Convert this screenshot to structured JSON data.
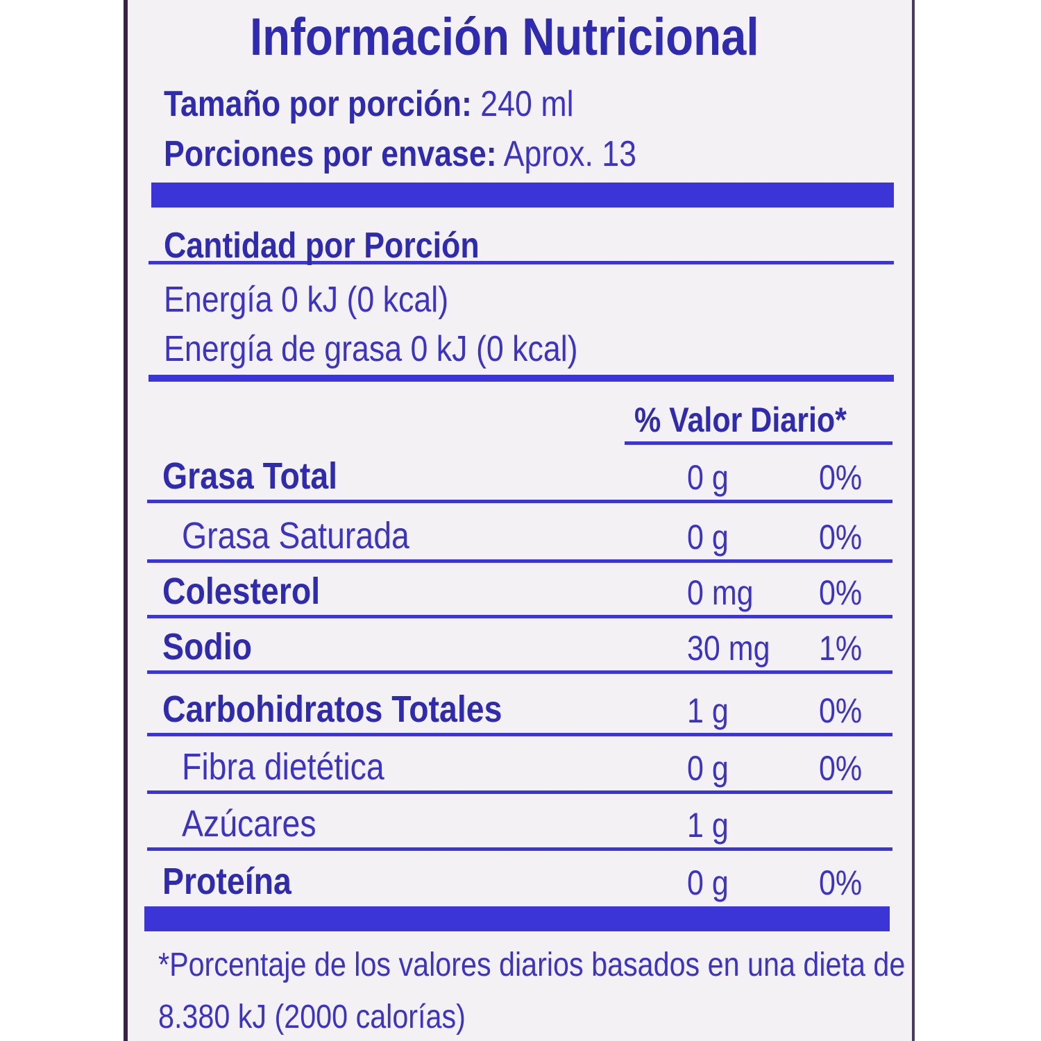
{
  "header": {
    "title": "Información Nutricional"
  },
  "serving": [
    {
      "label": "Tamaño por porción:",
      "value": "240 ml"
    },
    {
      "label": "Porciones por envase:",
      "value": "Aprox. 13"
    }
  ],
  "amount_header": "Cantidad por Porción",
  "energy": [
    "Energía 0 kJ (0 kcal)",
    "Energía de grasa 0 kJ (0 kcal)"
  ],
  "dv_header": "% Valor Diario*",
  "rows": [
    {
      "name": "Grasa Total",
      "amount": "0 g",
      "dv": "0%",
      "bold": true
    },
    {
      "name": "Grasa Saturada",
      "amount": "0 g",
      "dv": "0%",
      "bold": false
    },
    {
      "name": "Colesterol",
      "amount": "0 mg",
      "dv": "0%",
      "bold": true
    },
    {
      "name": "Sodio",
      "amount": "30 mg",
      "dv": "1%",
      "bold": true
    },
    {
      "name": "Carbohidratos Totales",
      "amount": "1 g",
      "dv": "0%",
      "bold": true
    },
    {
      "name": "Fibra dietética",
      "amount": "0 g",
      "dv": "0%",
      "bold": false
    },
    {
      "name": "Azúcares",
      "amount": "1 g",
      "bold": false
    },
    {
      "name": "Proteína",
      "amount": "0 g",
      "dv": "0%",
      "bold": true
    }
  ],
  "footnote": [
    "*Porcentaje de los valores diarios basados en una dieta de",
    "8.380 kJ (2000 calorías)"
  ]
}
